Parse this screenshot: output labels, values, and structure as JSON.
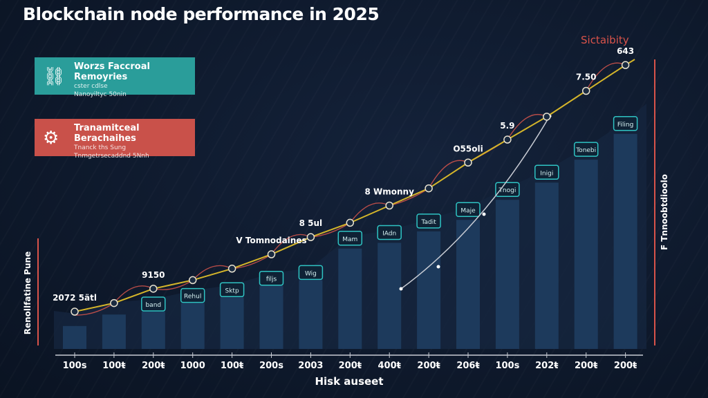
{
  "title": "Blockchain node performance in 2025",
  "legend": [
    {
      "heading": "Worzs Faccroal Remoyries",
      "lines": [
        "cster cdlse",
        "Nanoyiltyc 50nin"
      ],
      "color": "#2a9d9a",
      "icon": "network-icon"
    },
    {
      "heading": "Tranamitceal Berachaihes",
      "lines": [
        "Tnanck ths Sung",
        "Tnmgetrsecaddnd 5Nnh"
      ],
      "color": "#c9514a",
      "icon": "gear-icon"
    }
  ],
  "chart_data": {
    "type": "bar",
    "title": "Blockchain node performance in 2025",
    "xlabel": "Hisk auseet",
    "ylabel": "Renollfatine Pune",
    "y2label": "F Tnnoobtdioolo",
    "line_series_label": "Sictaibity",
    "categories": [
      "100s",
      "100ŧ",
      "200ŧ",
      "1000",
      "100ŧ",
      "200s",
      "2003",
      "200ŧ",
      "400ŧ",
      "200ŧ",
      "206ŧ",
      "100s",
      "202ŧ",
      "200ŧ",
      "200ŧ"
    ],
    "ylim": [
      0,
      100
    ],
    "grid": false,
    "bar_values": [
      8,
      12,
      13,
      16,
      18,
      22,
      24,
      35,
      37,
      41,
      45,
      52,
      58,
      66,
      75
    ],
    "bar_labels": [
      "",
      "",
      "band",
      "Rehul",
      "Sktp",
      "filjs",
      "Wig",
      "Mam",
      "IAdn",
      "Tadit",
      "Maje",
      "Tnogi",
      "Inigi",
      "Tonebi",
      "Filing"
    ],
    "line_values": [
      13,
      16,
      21,
      24,
      28,
      33,
      39,
      44,
      50,
      56,
      65,
      73,
      81,
      90,
      99
    ],
    "line_labels": [
      "2072 5ätl",
      "",
      "9150",
      "",
      "",
      "V Tomnodaines",
      "8 5ul",
      "",
      "8 Wmonny",
      "",
      "O55oli",
      "5.9",
      "",
      "7.50",
      "643"
    ],
    "colors": {
      "bars": "#1d3a5c",
      "line": "#d4b52a",
      "accent": "#d9534a",
      "label_box": "#2fc4c4",
      "secondary_line": "#c8ccd4"
    }
  }
}
